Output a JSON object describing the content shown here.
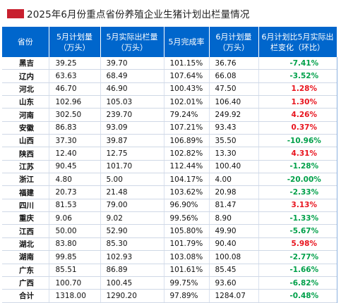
{
  "title": "2025年6月份重点省份养殖企业生猪计划出栏量情况",
  "colors": {
    "header_bg": "#0066cc",
    "title_mark": "#c8202f",
    "increase": "#e8141e",
    "decrease": "#00a04a"
  },
  "table": {
    "headers": [
      "省份",
      "5月计划量（万头）",
      "5月实际出栏量（万头）",
      "5月完成率",
      "6月计划量（万头）",
      "6月计划比5月实际出栏变化（环比）"
    ],
    "rows": [
      {
        "province": "黑吉",
        "may_plan": "39.25",
        "may_actual": "39.70",
        "may_rate": "101.15%",
        "jun_plan": "36.76",
        "change": "-7.41%",
        "direction": "down"
      },
      {
        "province": "辽内",
        "may_plan": "63.63",
        "may_actual": "68.49",
        "may_rate": "107.64%",
        "jun_plan": "66.08",
        "change": "-3.52%",
        "direction": "down"
      },
      {
        "province": "河北",
        "may_plan": "46.70",
        "may_actual": "46.90",
        "may_rate": "100.43%",
        "jun_plan": "47.50",
        "change": "1.28%",
        "direction": "up"
      },
      {
        "province": "山东",
        "may_plan": "102.96",
        "may_actual": "105.03",
        "may_rate": "102.01%",
        "jun_plan": "106.40",
        "change": "1.30%",
        "direction": "up"
      },
      {
        "province": "河南",
        "may_plan": "302.50",
        "may_actual": "239.70",
        "may_rate": "79.24%",
        "jun_plan": "249.92",
        "change": "4.26%",
        "direction": "up"
      },
      {
        "province": "安徽",
        "may_plan": "86.83",
        "may_actual": "93.09",
        "may_rate": "107.21%",
        "jun_plan": "93.43",
        "change": "0.37%",
        "direction": "up"
      },
      {
        "province": "山西",
        "may_plan": "37.30",
        "may_actual": "39.87",
        "may_rate": "106.89%",
        "jun_plan": "35.50",
        "change": "-10.96%",
        "direction": "down"
      },
      {
        "province": "陕西",
        "may_plan": "12.40",
        "may_actual": "12.75",
        "may_rate": "102.82%",
        "jun_plan": "13.30",
        "change": "4.31%",
        "direction": "up"
      },
      {
        "province": "江苏",
        "may_plan": "90.45",
        "may_actual": "101.70",
        "may_rate": "112.44%",
        "jun_plan": "100.40",
        "change": "-1.28%",
        "direction": "down"
      },
      {
        "province": "浙江",
        "may_plan": "4.80",
        "may_actual": "5.00",
        "may_rate": "104.17%",
        "jun_plan": "4.00",
        "change": "-20.00%",
        "direction": "down"
      },
      {
        "province": "福建",
        "may_plan": "20.73",
        "may_actual": "21.48",
        "may_rate": "103.62%",
        "jun_plan": "20.98",
        "change": "-2.33%",
        "direction": "down"
      },
      {
        "province": "四川",
        "may_plan": "81.53",
        "may_actual": "79.00",
        "may_rate": "96.90%",
        "jun_plan": "81.47",
        "change": "3.13%",
        "direction": "up"
      },
      {
        "province": "重庆",
        "may_plan": "9.06",
        "may_actual": "9.02",
        "may_rate": "99.56%",
        "jun_plan": "8.90",
        "change": "-1.33%",
        "direction": "down"
      },
      {
        "province": "江西",
        "may_plan": "50.00",
        "may_actual": "52.90",
        "may_rate": "105.80%",
        "jun_plan": "49.90",
        "change": "-5.67%",
        "direction": "down"
      },
      {
        "province": "湖北",
        "may_plan": "83.80",
        "may_actual": "85.30",
        "may_rate": "101.79%",
        "jun_plan": "90.40",
        "change": "5.98%",
        "direction": "up"
      },
      {
        "province": "湖南",
        "may_plan": "99.85",
        "may_actual": "102.93",
        "may_rate": "103.08%",
        "jun_plan": "100.08",
        "change": "-2.77%",
        "direction": "down"
      },
      {
        "province": "广东",
        "may_plan": "85.51",
        "may_actual": "86.89",
        "may_rate": "101.61%",
        "jun_plan": "85.45",
        "change": "-1.66%",
        "direction": "down"
      },
      {
        "province": "广西",
        "may_plan": "100.70",
        "may_actual": "100.45",
        "may_rate": "99.75%",
        "jun_plan": "93.60",
        "change": "-6.82%",
        "direction": "down"
      },
      {
        "province": "合计",
        "may_plan": "1318.00",
        "may_actual": "1290.20",
        "may_rate": "97.89%",
        "jun_plan": "1284.07",
        "change": "-0.48%",
        "direction": "down"
      }
    ]
  }
}
